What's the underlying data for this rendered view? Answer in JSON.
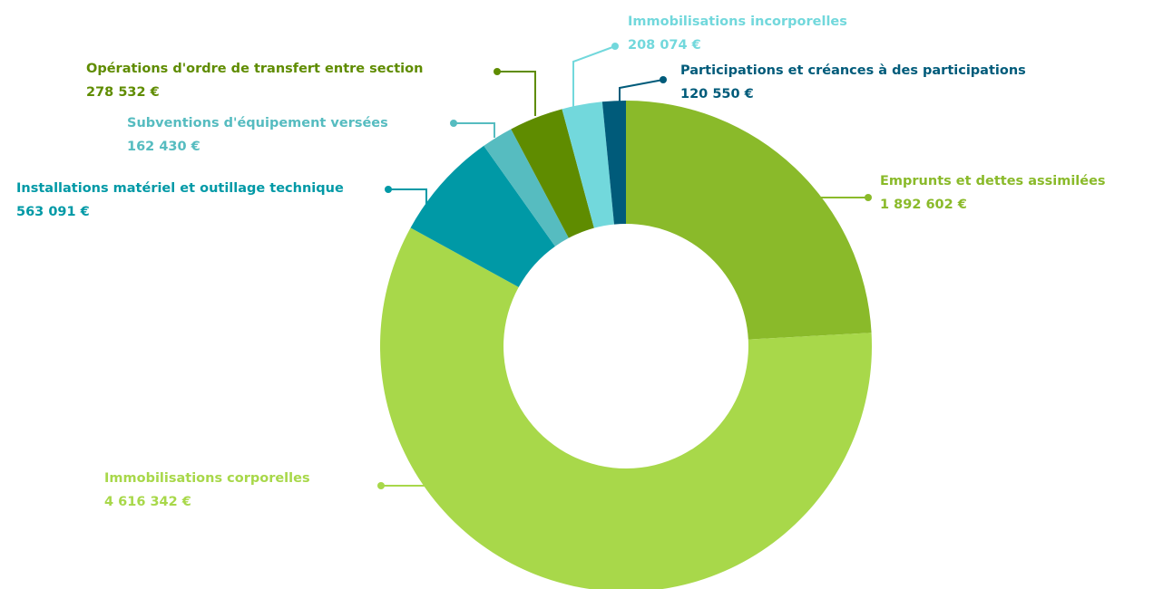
{
  "chart_data": {
    "type": "donut",
    "categories": [
      "Emprunts et dettes assimilées",
      "Immobilisations corporelles",
      "Installations matériel et outillage technique",
      "Subventions d'équipement versées",
      "Opérations d'ordre de transfert entre section",
      "Immobilisations incorporelles",
      "Participations et créances à des participations"
    ],
    "values": [
      1892602,
      4616342,
      563091,
      162430,
      278532,
      208074,
      120550
    ],
    "value_labels": [
      "1 892 602 €",
      "4 616 342 €",
      "563 091 €",
      "162 430 €",
      "278 532 €",
      "208 074 €",
      "120 550 €"
    ],
    "colors": [
      "#8aba2a",
      "#a8d84a",
      "#0099a6",
      "#56bcc0",
      "#5f8c00",
      "#72d8dc",
      "#005b7a"
    ]
  }
}
